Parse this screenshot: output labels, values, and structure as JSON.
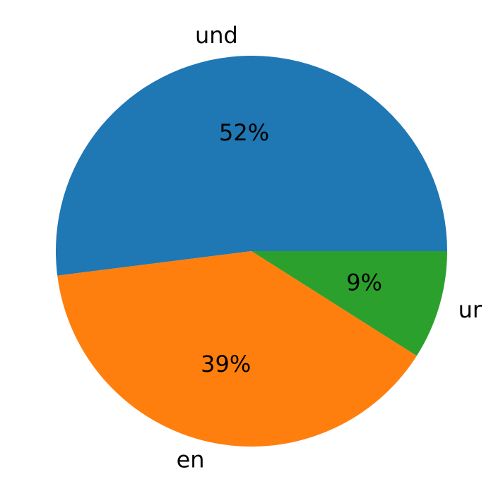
{
  "chart_data": {
    "type": "pie",
    "categories": [
      "und",
      "en",
      "ur"
    ],
    "values": [
      52,
      39,
      9
    ],
    "value_labels": [
      "52%",
      "39%",
      "9%"
    ],
    "colors": [
      "#1f77b4",
      "#ff7f0e",
      "#2ca02c"
    ]
  }
}
